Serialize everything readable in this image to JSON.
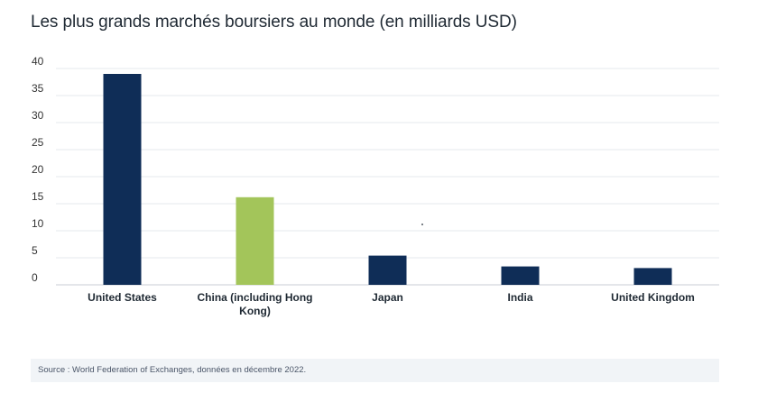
{
  "title": "Les plus grands marchés boursiers au monde (en milliards USD)",
  "source": "Source : World Federation of Exchanges, données en décembre 2022.",
  "colors": {
    "primary": "#0f2d57",
    "highlight": "#a3c55a",
    "grid": "#e6e9ee"
  },
  "chart_data": {
    "type": "bar",
    "title": "Les plus grands marchés boursiers au monde (en milliards USD)",
    "categories": [
      "United States",
      "China (including Hong Kong)",
      "Japan",
      "India",
      "United Kingdom"
    ],
    "category_lines": [
      [
        "United States"
      ],
      [
        "China (including Hong",
        "Kong)"
      ],
      [
        "Japan"
      ],
      [
        "India"
      ],
      [
        "United Kingdom"
      ]
    ],
    "values": [
      39,
      16.2,
      5.4,
      3.4,
      3.1
    ],
    "bar_colors": [
      "#0f2d57",
      "#a3c55a",
      "#0f2d57",
      "#0f2d57",
      "#0f2d57"
    ],
    "ylim": [
      0,
      40
    ],
    "yticks": [
      0,
      5,
      10,
      15,
      20,
      25,
      30,
      35,
      40
    ],
    "grid": true,
    "legend": "none",
    "xlabel": "",
    "ylabel": ""
  }
}
